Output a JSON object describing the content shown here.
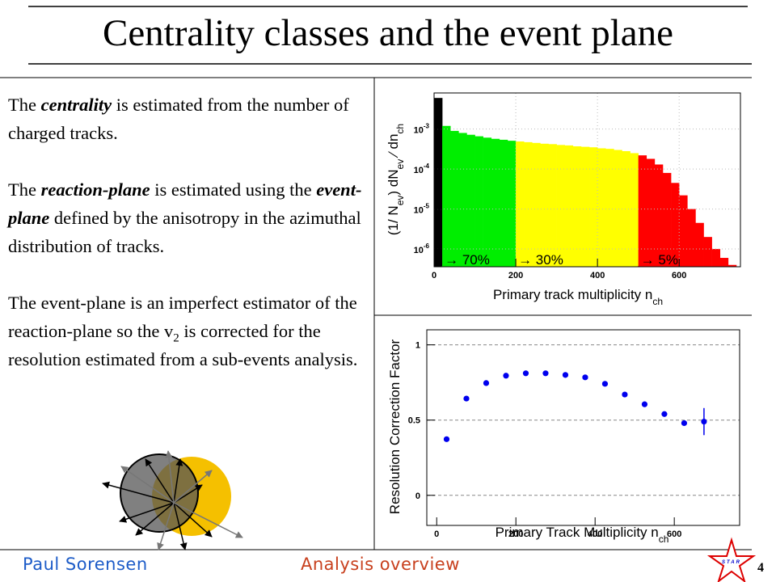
{
  "title": "Centrality classes and the event plane",
  "paragraphs": [
    [
      {
        "text": "The "
      },
      {
        "text": "centrality",
        "emphasis": true
      },
      {
        "text": " is estimated from the number of charged tracks."
      }
    ],
    [
      {
        "text": "The "
      },
      {
        "text": "reaction-plane",
        "emphasis": true
      },
      {
        "text": " is estimated using the "
      },
      {
        "text": "event-plane",
        "emphasis": true
      },
      {
        "text": " defined by the anisotropy in the azimuthal distribution of tracks."
      }
    ],
    [
      {
        "text": "The event-plane is an imperfect estimator of the reaction-plane so the v"
      },
      {
        "text": "2",
        "sub": true
      },
      {
        "text": " is corrected for the resolution estimated from a sub-events analysis."
      }
    ]
  ],
  "footer": {
    "author": "Paul Sorensen",
    "topic": "Analysis overview",
    "page": "4",
    "logo": "STAR"
  },
  "chart_data": [
    {
      "type": "histogram",
      "log_y": true,
      "grid": true,
      "bins": [
        0,
        20,
        40,
        60,
        80,
        100,
        120,
        140,
        160,
        180,
        200,
        220,
        240,
        260,
        280,
        300,
        320,
        340,
        360,
        380,
        400,
        420,
        440,
        460,
        480,
        500,
        520,
        540,
        560,
        580,
        600,
        620,
        640,
        660,
        680,
        700,
        720,
        740
      ],
      "values": [
        0.006,
        0.0012,
        0.0009,
        0.0008,
        0.00072,
        0.00066,
        0.00061,
        0.00057,
        0.00054,
        0.00051,
        0.00049,
        0.00047,
        0.00045,
        0.00043,
        0.00042,
        0.0004,
        0.00039,
        0.00037,
        0.00036,
        0.00035,
        0.00033,
        0.00032,
        0.0003,
        0.00028,
        0.00025,
        0.00022,
        0.00018,
        0.00013,
        8e-05,
        4.5e-05,
        2.2e-05,
        1e-05,
        4.5e-06,
        2e-06,
        1e-06,
        6e-07,
        4e-07
      ],
      "regions": [
        {
          "from": 0,
          "color": "#000000"
        },
        {
          "from": 20,
          "color": "#00ee00",
          "label": "→ 70%"
        },
        {
          "from": 200,
          "color": "#ffff00",
          "label": "→ 30%"
        },
        {
          "from": 500,
          "color": "#ff0000",
          "label": "→ 5%"
        }
      ],
      "xlim": [
        0,
        750
      ],
      "xticks": [
        0,
        200,
        400,
        600
      ],
      "ylim": [
        3.6e-07,
        0.008
      ],
      "yticks": [
        {
          "value": 0.001,
          "label": "10",
          "power": "-3"
        },
        {
          "value": 0.0001,
          "label": "10",
          "power": "-4"
        },
        {
          "value": 1e-05,
          "label": "10",
          "power": "-5"
        },
        {
          "value": 1e-06,
          "label": "10",
          "power": "-6"
        }
      ],
      "ylabel": [
        {
          "text": "(1/ N"
        },
        {
          "text": "ev",
          "sub": true
        },
        {
          "text": ") dN"
        },
        {
          "text": "ev",
          "sub": true
        },
        {
          "text": " ⁄ dn"
        },
        {
          "text": "ch",
          "sub": true
        }
      ],
      "xlabel": [
        {
          "text": "Primary track multiplicity n"
        },
        {
          "text": "ch",
          "sub": true
        }
      ]
    },
    {
      "type": "scatter",
      "grid": "y",
      "color": "#0000ee",
      "x": [
        25,
        75,
        125,
        175,
        225,
        275,
        325,
        375,
        425,
        475,
        525,
        575,
        625,
        675
      ],
      "values": [
        0.373,
        0.643,
        0.746,
        0.795,
        0.811,
        0.811,
        0.8,
        0.784,
        0.741,
        0.67,
        0.605,
        0.54,
        0.48,
        0.49
      ],
      "errors": [
        0.005,
        0.005,
        0.005,
        0.005,
        0.005,
        0.005,
        0.005,
        0.005,
        0.005,
        0.005,
        0.005,
        0.005,
        0.005,
        0.09
      ],
      "xlim": [
        -25,
        765
      ],
      "xticks": [
        0,
        200,
        400,
        600
      ],
      "ylim": [
        -0.2,
        1.1
      ],
      "yticks": [
        0,
        0.5,
        1
      ],
      "ylabel": [
        {
          "text": "Resolution Correction Factor"
        }
      ],
      "xlabel": [
        {
          "text": "Primary Track Multiplicity n"
        },
        {
          "text": "ch",
          "sub": true
        }
      ]
    }
  ]
}
